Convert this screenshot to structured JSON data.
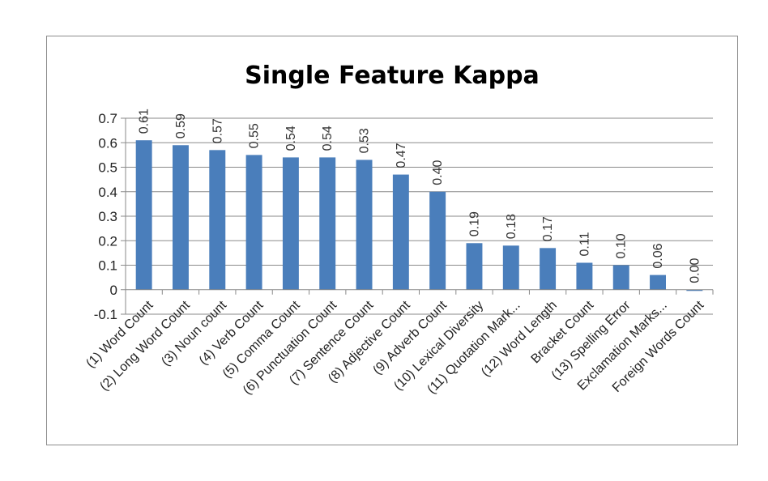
{
  "chart_data": {
    "type": "bar",
    "title": "Single Feature Kappa",
    "xlabel": "",
    "ylabel": "",
    "ylim": [
      -0.1,
      0.7
    ],
    "yticks": [
      0.7,
      0.6,
      0.5,
      0.4,
      0.3,
      0.2,
      0.1,
      0,
      -0.1
    ],
    "ytick_labels": [
      "0.7",
      "0.6",
      "0.5",
      "0.4",
      "0.3",
      "0.2",
      "0.1",
      "0",
      "-0.1"
    ],
    "grid": true,
    "legend": "none",
    "bar_color": "#4a7ebb",
    "categories": [
      "(1) Word Count",
      "(2) Long Word Count",
      "(3) Noun count",
      "(4) Verb Count",
      "(5) Comma Count",
      "(6) Punctuation Count",
      "(7) Sentence Count",
      "(8) Adjective Count",
      "(9) Adverb Count",
      "(10) Lexical Diversity",
      "(11) Quotation Mark...",
      "(12) Word Length",
      "Bracket Count",
      "(13) Spelling Error",
      "Exclamation Marks...",
      "Foreign Words Count"
    ],
    "values": [
      0.61,
      0.59,
      0.57,
      0.55,
      0.54,
      0.54,
      0.53,
      0.47,
      0.4,
      0.19,
      0.18,
      0.17,
      0.11,
      0.1,
      0.06,
      -0.005
    ],
    "data_labels": [
      "0.61",
      "0.59",
      "0.57",
      "0.55",
      "0.54",
      "0.54",
      "0.53",
      "0.47",
      "0.40",
      "0.19",
      "0.18",
      "0.17",
      "0.11",
      "0.10",
      "0.06",
      "0.00"
    ]
  }
}
